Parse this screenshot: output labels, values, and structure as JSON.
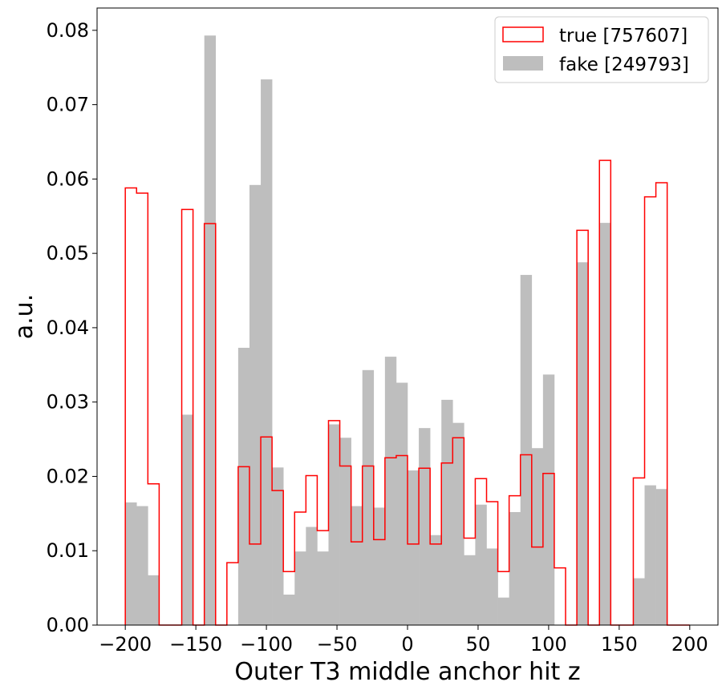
{
  "chart_data": {
    "type": "histogram",
    "xlabel": "Outer T3 middle anchor hit z",
    "ylabel": "a.u.",
    "xlim": [
      -220,
      220
    ],
    "ylim": [
      0,
      0.083
    ],
    "xticks": [
      -200,
      -150,
      -100,
      -50,
      0,
      50,
      100,
      150,
      200
    ],
    "xtick_labels": [
      "−200",
      "−150",
      "−100",
      "−50",
      "0",
      "50",
      "100",
      "150",
      "200"
    ],
    "yticks": [
      0.0,
      0.01,
      0.02,
      0.03,
      0.04,
      0.05,
      0.06,
      0.07,
      0.08
    ],
    "ytick_labels": [
      "0.00",
      "0.01",
      "0.02",
      "0.03",
      "0.04",
      "0.05",
      "0.06",
      "0.07",
      "0.08"
    ],
    "grid": false,
    "legend_position": "top-right",
    "bin_edges": [
      -200,
      -192,
      -184,
      -176,
      -168,
      -160,
      -152,
      -144,
      -136,
      -128,
      -120,
      -112,
      -104,
      -96,
      -88,
      -80,
      -72,
      -64,
      -56,
      -48,
      -40,
      -32,
      -24,
      -16,
      -8,
      0,
      8,
      16,
      24,
      32,
      40,
      48,
      56,
      64,
      72,
      80,
      88,
      96,
      104,
      112,
      120,
      128,
      136,
      144,
      152,
      160,
      168,
      176,
      184,
      192,
      200
    ],
    "series": [
      {
        "name": "true [757607]",
        "style": "step",
        "color": "#ff0000",
        "values": [
          0.0588,
          0.0581,
          0.019,
          0,
          0,
          0.0559,
          0,
          0.054,
          0,
          0.0084,
          0.0213,
          0.0109,
          0.0253,
          0.0181,
          0.0072,
          0.0152,
          0.0201,
          0.0127,
          0.0275,
          0.0214,
          0.0112,
          0.0214,
          0.0115,
          0.0225,
          0.0228,
          0.0109,
          0.0211,
          0.0109,
          0.0218,
          0.0252,
          0.0117,
          0.0197,
          0.0166,
          0.0072,
          0.0174,
          0.0229,
          0.0105,
          0.0204,
          0.0077,
          0,
          0.0531,
          0,
          0.0625,
          0,
          0,
          0.0198,
          0.0576,
          0.0595,
          0,
          0
        ]
      },
      {
        "name": "fake [249793]",
        "style": "filled",
        "color": "#bebebe",
        "values": [
          0.0165,
          0.016,
          0.0067,
          0,
          0,
          0.0283,
          0,
          0.0793,
          0,
          0,
          0.0373,
          0.0592,
          0.0734,
          0.0212,
          0.0041,
          0.0099,
          0.0132,
          0.0099,
          0.027,
          0.0252,
          0.016,
          0.0343,
          0.0158,
          0.0361,
          0.0326,
          0.0208,
          0.0265,
          0.0121,
          0.0303,
          0.0272,
          0.0094,
          0.0162,
          0.0103,
          0.0037,
          0.0152,
          0.0471,
          0.0238,
          0.0337,
          0,
          0,
          0.0488,
          0,
          0.0541,
          0,
          0,
          0.0063,
          0.0188,
          0.0183,
          0,
          0
        ]
      }
    ]
  }
}
